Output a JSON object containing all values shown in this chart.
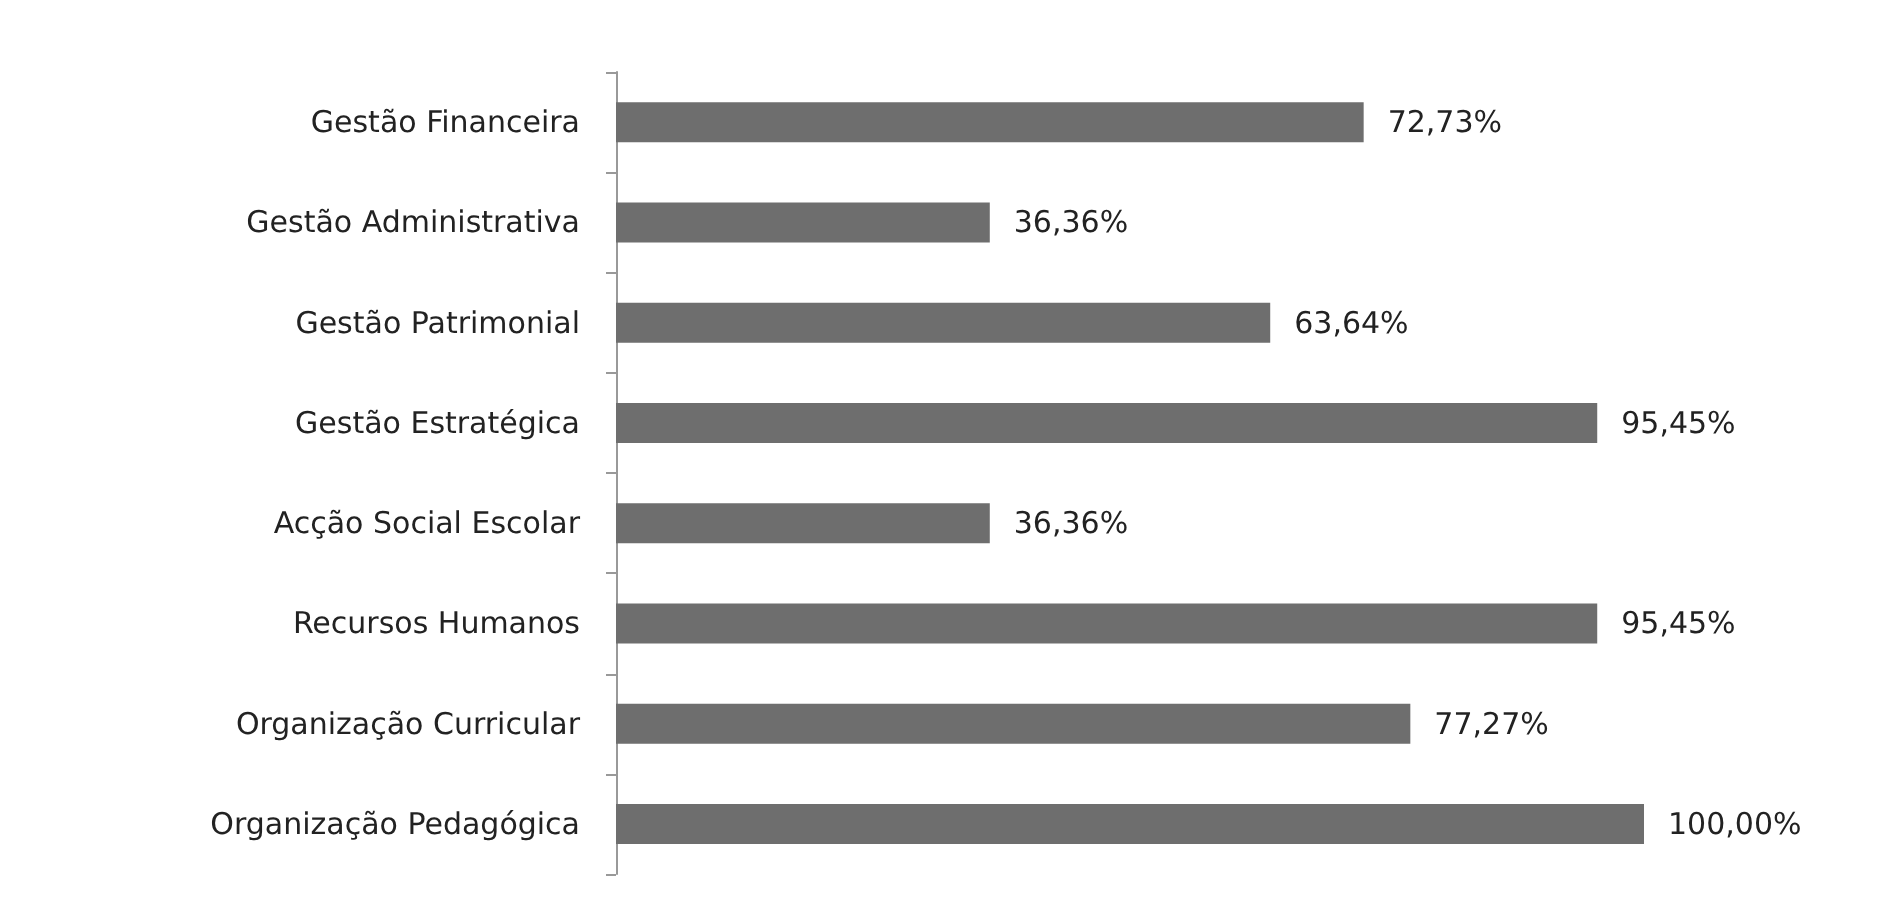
{
  "chart_data": {
    "type": "bar",
    "orientation": "horizontal",
    "categories": [
      "Gestão Financeira",
      "Gestão Administrativa",
      "Gestão Patrimonial",
      "Gestão Estratégica",
      "Acção Social Escolar",
      "Recursos Humanos",
      "Organização Curricular",
      "Organização Pedagógica"
    ],
    "values": [
      72.73,
      36.36,
      63.64,
      95.45,
      36.36,
      95.45,
      77.27,
      100.0
    ],
    "value_labels": [
      "72,73%",
      "36,36%",
      "63,64%",
      "95,45%",
      "36,36%",
      "95,45%",
      "77,27%",
      "100,00%"
    ],
    "color": "#6e6e6e"
  }
}
